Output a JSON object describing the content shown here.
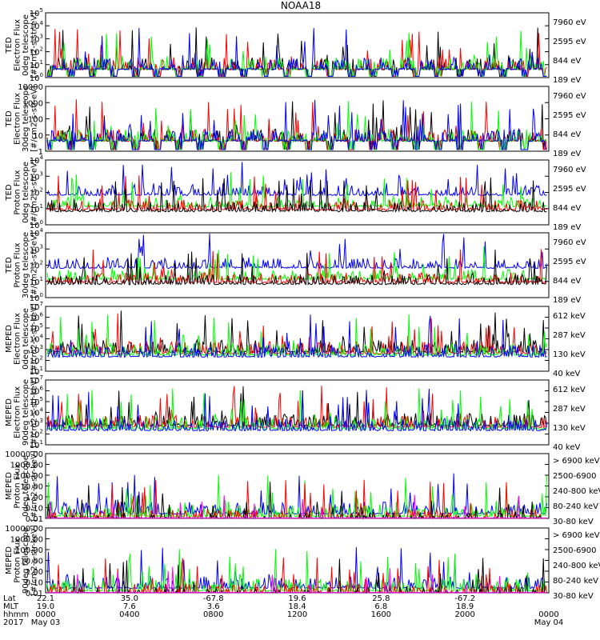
{
  "chart_data": {
    "type": "line",
    "title": "NOAA18",
    "colors": {
      "black": "#000000",
      "red": "#ff0000",
      "green": "#00ff00",
      "blue": "#0000ff",
      "magenta": "#ff00ff"
    },
    "panels": [
      {
        "ylabel": [
          "TED",
          "Electron Flux",
          "0deg telescope",
          "[#/cm2-s-str-eV]"
        ],
        "ticks": [
          {
            "base": "10",
            "exp": "0"
          },
          {
            "base": "10",
            "exp": "1"
          },
          {
            "base": "10",
            "exp": "2"
          },
          {
            "base": "10",
            "exp": "3"
          },
          {
            "base": "10",
            "exp": "4"
          },
          {
            "base": "10",
            "exp": "5"
          }
        ],
        "ylim_log10": [
          0,
          5
        ],
        "legend": [
          {
            "label": "7960 eV",
            "color": "#000000"
          },
          {
            "label": "2595 eV",
            "color": "#ff0000"
          },
          {
            "label": "844 eV",
            "color": "#00ff00"
          },
          {
            "label": "189 eV",
            "color": "#0000ff"
          }
        ]
      },
      {
        "ylabel": [
          "TED",
          "Electron Flux",
          "30deg telescope",
          "[#/cm2-s-str-eV]"
        ],
        "ticks": [
          {
            "base": "1"
          },
          {
            "base": "10"
          },
          {
            "base": "100"
          },
          {
            "base": "1000"
          },
          {
            "base": "10000"
          }
        ],
        "ylim_log10": [
          0,
          4
        ],
        "legend": [
          {
            "label": "7960 eV",
            "color": "#000000"
          },
          {
            "label": "2595 eV",
            "color": "#ff0000"
          },
          {
            "label": "844 eV",
            "color": "#00ff00"
          },
          {
            "label": "189 eV",
            "color": "#0000ff"
          }
        ]
      },
      {
        "ylabel": [
          "TED",
          "Proton Flux",
          "0deg telescope",
          "[#/cm2-s-str-eV]"
        ],
        "ticks": [
          {
            "base": "10",
            "exp": "0"
          },
          {
            "base": "10",
            "exp": "1"
          },
          {
            "base": "10",
            "exp": "2"
          },
          {
            "base": "10",
            "exp": "3"
          },
          {
            "base": "10",
            "exp": "4"
          }
        ],
        "ylim_log10": [
          0,
          4
        ],
        "legend": [
          {
            "label": "7960 eV",
            "color": "#000000"
          },
          {
            "label": "2595 eV",
            "color": "#ff0000"
          },
          {
            "label": "844 eV",
            "color": "#00ff00"
          },
          {
            "label": "189 eV",
            "color": "#0000ff"
          }
        ]
      },
      {
        "ylabel": [
          "TED",
          "Proton Flux",
          "30deg telescope",
          "[#/cm2-s-str-eV]"
        ],
        "ticks": [
          {
            "base": "10",
            "exp": "0"
          },
          {
            "base": "10",
            "exp": "1"
          },
          {
            "base": "10",
            "exp": "2"
          },
          {
            "base": "10",
            "exp": "3"
          },
          {
            "base": "10",
            "exp": "4"
          }
        ],
        "ylim_log10": [
          0,
          4
        ],
        "legend": [
          {
            "label": "7960 eV",
            "color": "#000000"
          },
          {
            "label": "2595 eV",
            "color": "#ff0000"
          },
          {
            "label": "844 eV",
            "color": "#00ff00"
          },
          {
            "label": "189 eV",
            "color": "#0000ff"
          }
        ]
      },
      {
        "ylabel": [
          "MEPED",
          "Electron Flux",
          "0deg telescope",
          "[#/cm2-s-str-keV]"
        ],
        "ticks": [
          {
            "base": "10",
            "exp": "1"
          },
          {
            "base": "10",
            "exp": "2"
          },
          {
            "base": "10",
            "exp": "3"
          },
          {
            "base": "10",
            "exp": "4"
          },
          {
            "base": "10",
            "exp": "5"
          },
          {
            "base": "10",
            "exp": "6"
          },
          {
            "base": "10",
            "exp": "7"
          }
        ],
        "ylim_log10": [
          1,
          7
        ],
        "legend": [
          {
            "label": "612 keV",
            "color": "#000000"
          },
          {
            "label": "287 keV",
            "color": "#ff0000"
          },
          {
            "label": "130 keV",
            "color": "#00ff00"
          },
          {
            "label": "40 keV",
            "color": "#0000ff"
          }
        ]
      },
      {
        "ylabel": [
          "MEPED",
          "Electron Flux",
          "90deg telescope",
          "[#/cm2-s-str-keV]"
        ],
        "ticks": [
          {
            "base": "10",
            "exp": "1"
          },
          {
            "base": "10",
            "exp": "2"
          },
          {
            "base": "10",
            "exp": "3"
          },
          {
            "base": "10",
            "exp": "4"
          },
          {
            "base": "10",
            "exp": "5"
          },
          {
            "base": "10",
            "exp": "6"
          },
          {
            "base": "10",
            "exp": "7"
          }
        ],
        "ylim_log10": [
          1,
          7
        ],
        "legend": [
          {
            "label": "612 keV",
            "color": "#000000"
          },
          {
            "label": "287 keV",
            "color": "#ff0000"
          },
          {
            "label": "130 keV",
            "color": "#00ff00"
          },
          {
            "label": "40 keV",
            "color": "#0000ff"
          }
        ]
      },
      {
        "ylabel": [
          "MEPED",
          "Proton Flux",
          "0deg telescope",
          "[#/cm2-s-str-keV]"
        ],
        "ticks": [
          {
            "base": "0.01"
          },
          {
            "base": "0.10"
          },
          {
            "base": "1.00"
          },
          {
            "base": "10.00"
          },
          {
            "base": "100.00"
          },
          {
            "base": "1000.00"
          },
          {
            "base": "10000.00"
          }
        ],
        "ylim_log10": [
          -2,
          4
        ],
        "legend": [
          {
            "label": "> 6900 keV",
            "color": "#ff00ff"
          },
          {
            "label": "2500-6900",
            "color": "#000000"
          },
          {
            "label": "240-800 keV",
            "color": "#ff0000"
          },
          {
            "label": "80-240 keV",
            "color": "#00ff00"
          },
          {
            "label": "30-80 keV",
            "color": "#0000ff"
          }
        ]
      },
      {
        "ylabel": [
          "MEPED",
          "Proton Flux",
          "90deg telescope",
          "[#/cm2-s-str-keV]"
        ],
        "ticks": [
          {
            "base": "0.01"
          },
          {
            "base": "0.10"
          },
          {
            "base": "1.00"
          },
          {
            "base": "10.00"
          },
          {
            "base": "100.00"
          },
          {
            "base": "1000.00"
          },
          {
            "base": "10000.00"
          }
        ],
        "ylim_log10": [
          -2,
          4
        ],
        "legend": [
          {
            "label": "> 6900 keV",
            "color": "#ff00ff"
          },
          {
            "label": "2500-6900",
            "color": "#000000"
          },
          {
            "label": "240-800 keV",
            "color": "#ff0000"
          },
          {
            "label": "80-240 keV",
            "color": "#00ff00"
          },
          {
            "label": "30-80 keV",
            "color": "#0000ff"
          }
        ]
      }
    ],
    "x_axis": {
      "row_labels": [
        "Lat",
        "MLT",
        "hhmm",
        "2017"
      ],
      "ticks": [
        {
          "lat": "22.1",
          "mlt": "19.0",
          "hhmm": "0000",
          "date": "May 03"
        },
        {
          "lat": "35.0",
          "mlt": "7.6",
          "hhmm": "0400",
          "date": ""
        },
        {
          "lat": "-67.8",
          "mlt": "3.6",
          "hhmm": "0800",
          "date": ""
        },
        {
          "lat": "19.6",
          "mlt": "18.4",
          "hhmm": "1200",
          "date": ""
        },
        {
          "lat": "25.8",
          "mlt": "6.8",
          "hhmm": "1600",
          "date": ""
        },
        {
          "lat": "-67.2",
          "mlt": "18.9",
          "hhmm": "2000",
          "date": ""
        },
        {
          "lat": "",
          "mlt": "",
          "hhmm": "0000",
          "date": "May 04"
        }
      ],
      "xlim_hours": [
        0,
        24
      ]
    }
  }
}
